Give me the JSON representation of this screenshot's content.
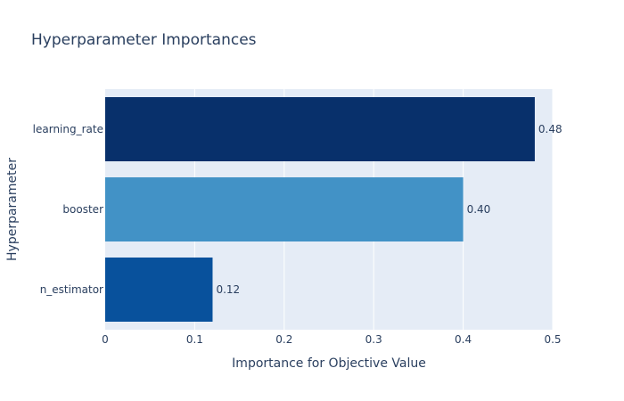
{
  "chart_data": {
    "type": "bar",
    "orientation": "horizontal",
    "title": "Hyperparameter Importances",
    "xlabel": "Importance for Objective Value",
    "ylabel": "Hyperparameter",
    "categories": [
      "learning_rate",
      "booster",
      "n_estimator"
    ],
    "values": [
      0.48,
      0.4,
      0.12
    ],
    "value_labels": [
      "0.48",
      "0.40",
      "0.12"
    ],
    "bar_colors": [
      "#08306b",
      "#4292c6",
      "#08519c"
    ],
    "xlim": [
      0,
      0.5
    ],
    "xticks": [
      0,
      0.1,
      0.2,
      0.3,
      0.4,
      0.5
    ],
    "xtick_labels": [
      "0",
      "0.1",
      "0.2",
      "0.3",
      "0.4",
      "0.5"
    ],
    "grid": true,
    "colors": {
      "plot_background": "#e5ecf6",
      "grid": "#ffffff",
      "text": "#2a3f5f"
    }
  }
}
